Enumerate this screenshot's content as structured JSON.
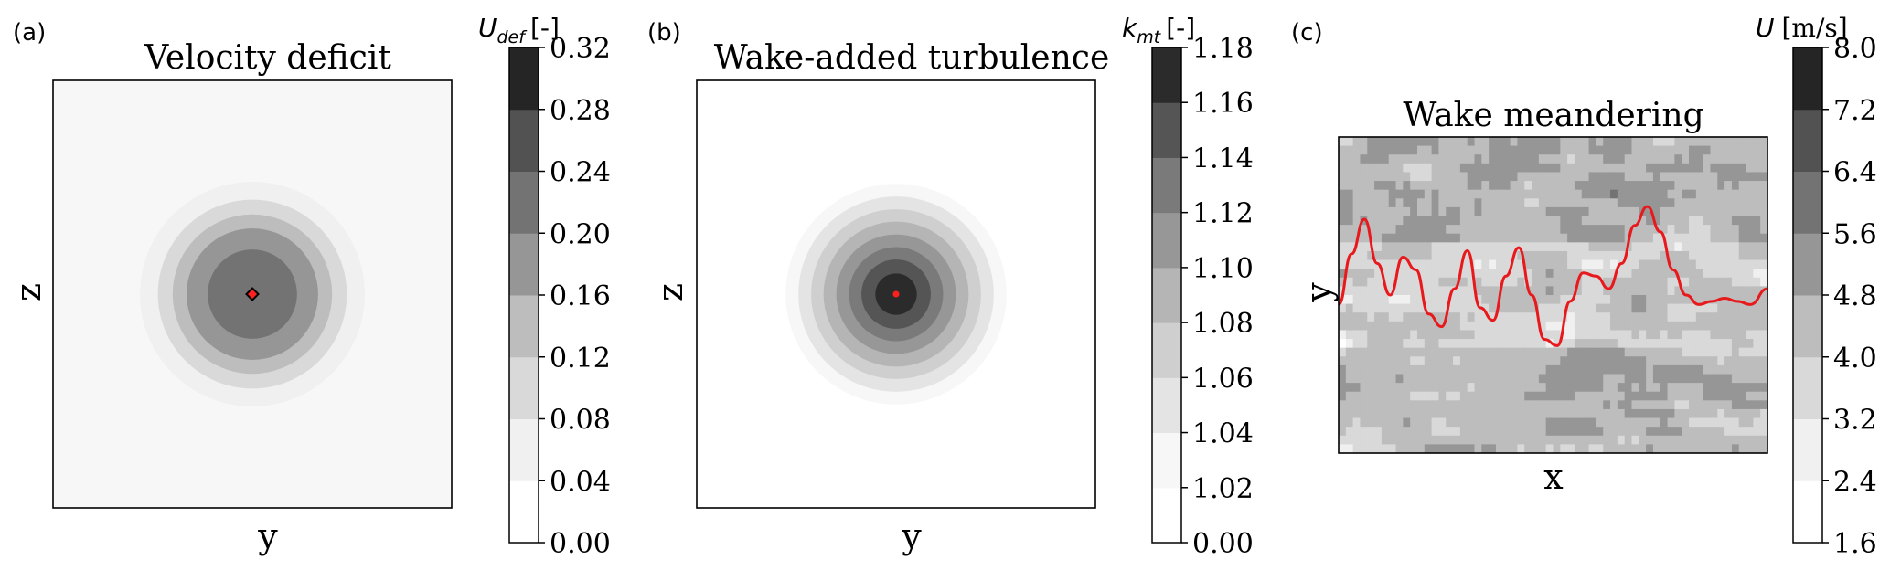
{
  "figure": {
    "background": "#ffffff"
  },
  "chart_data": [
    {
      "id": "a",
      "panel_label": "(a)",
      "type": "heatmap",
      "subtype": "filled-contour",
      "title": "Velocity deficit",
      "xlabel": "y",
      "ylabel": "z",
      "colormap": "Greys",
      "colorbar": {
        "label_symbol": "U",
        "label_sub": "def",
        "label_unit": "[-]",
        "levels": [
          0.0,
          0.04,
          0.08,
          0.12,
          0.16,
          0.2,
          0.24,
          0.28,
          0.32
        ],
        "tick_labels": [
          "0.00",
          "0.04",
          "0.08",
          "0.12",
          "0.16",
          "0.20",
          "0.24",
          "0.28",
          "0.32"
        ],
        "band_colors": [
          "#ffffff",
          "#f0f0f0",
          "#d9d9d9",
          "#bdbdbd",
          "#969696",
          "#737373",
          "#525252",
          "#252525"
        ]
      },
      "contours": {
        "shape": "circle",
        "background_level_index": 0,
        "rings": [
          {
            "level_index": 1,
            "radius_frac": 0.282
          },
          {
            "level_index": 2,
            "radius_frac": 0.237
          },
          {
            "level_index": 3,
            "radius_frac": 0.2
          },
          {
            "level_index": 4,
            "radius_frac": 0.165
          },
          {
            "level_index": 5,
            "radius_frac": 0.112
          }
        ],
        "center_frac": [
          0.5,
          0.5
        ]
      },
      "marker": {
        "shape": "diamond",
        "color": "#ff2020",
        "edge": "#000000"
      }
    },
    {
      "id": "b",
      "panel_label": "(b)",
      "type": "heatmap",
      "subtype": "filled-contour",
      "title": "Wake-added turbulence",
      "xlabel": "y",
      "ylabel": "z",
      "colormap": "Greys",
      "colorbar": {
        "label_symbol": "k",
        "label_sub": "mt",
        "label_unit": "[-]",
        "levels": [
          0.0,
          1.02,
          1.04,
          1.06,
          1.08,
          1.1,
          1.12,
          1.14,
          1.16,
          1.18
        ],
        "tick_labels": [
          "0.00",
          "1.02",
          "1.04",
          "1.06",
          "1.08",
          "1.10",
          "1.12",
          "1.14",
          "1.16",
          "1.18"
        ],
        "band_colors": [
          "#ffffff",
          "#f7f7f7",
          "#e4e4e4",
          "#cfcfcf",
          "#b5b5b5",
          "#979797",
          "#7a7a7a",
          "#555555",
          "#2b2b2b"
        ]
      },
      "contours": {
        "shape": "circle",
        "background_level_index": 0,
        "rings": [
          {
            "level_index": 1,
            "radius_frac": 0.277
          },
          {
            "level_index": 2,
            "radius_frac": 0.245
          },
          {
            "level_index": 3,
            "radius_frac": 0.213
          },
          {
            "level_index": 4,
            "radius_frac": 0.182
          },
          {
            "level_index": 5,
            "radius_frac": 0.15
          },
          {
            "level_index": 6,
            "radius_frac": 0.118
          },
          {
            "level_index": 7,
            "radius_frac": 0.087
          },
          {
            "level_index": 8,
            "radius_frac": 0.052
          }
        ],
        "center_frac": [
          0.5,
          0.5
        ]
      },
      "marker": {
        "shape": "dot",
        "color": "#ff2020"
      }
    },
    {
      "id": "c",
      "panel_label": "(c)",
      "type": "heatmap",
      "subtype": "turbulent-field-with-trajectory",
      "title": "Wake meandering",
      "xlabel": "x",
      "ylabel": "y",
      "colormap": "Greys",
      "colorbar": {
        "label_symbol": "U",
        "label_unit": "[m/s]",
        "levels": [
          1.6,
          2.4,
          3.2,
          4.0,
          4.8,
          5.6,
          6.4,
          7.2,
          8.0
        ],
        "tick_labels": [
          "1.6",
          "2.4",
          "3.2",
          "4.0",
          "4.8",
          "5.6",
          "6.4",
          "7.2",
          "8.0"
        ],
        "band_colors": [
          "#ffffff",
          "#f0f0f0",
          "#d9d9d9",
          "#bdbdbd",
          "#969696",
          "#737373",
          "#525252",
          "#252525"
        ]
      },
      "field": {
        "seed": 7,
        "mean_top": 4.6,
        "mean_bottom": 4.4,
        "fluctuation": 1.3
      },
      "trajectory": {
        "color": "#e8191c",
        "x": [
          0.0,
          0.03,
          0.06,
          0.09,
          0.12,
          0.15,
          0.18,
          0.21,
          0.24,
          0.27,
          0.3,
          0.33,
          0.36,
          0.39,
          0.42,
          0.45,
          0.48,
          0.51,
          0.54,
          0.57,
          0.6,
          0.63,
          0.66,
          0.69,
          0.72,
          0.75,
          0.78,
          0.81,
          0.84,
          0.87,
          0.9,
          0.93,
          0.96,
          1.0
        ],
        "y": [
          0.47,
          0.63,
          0.74,
          0.6,
          0.5,
          0.62,
          0.58,
          0.44,
          0.4,
          0.52,
          0.64,
          0.46,
          0.42,
          0.56,
          0.65,
          0.5,
          0.36,
          0.34,
          0.48,
          0.57,
          0.56,
          0.52,
          0.6,
          0.72,
          0.78,
          0.7,
          0.58,
          0.5,
          0.47,
          0.48,
          0.49,
          0.48,
          0.47,
          0.52
        ]
      }
    }
  ]
}
